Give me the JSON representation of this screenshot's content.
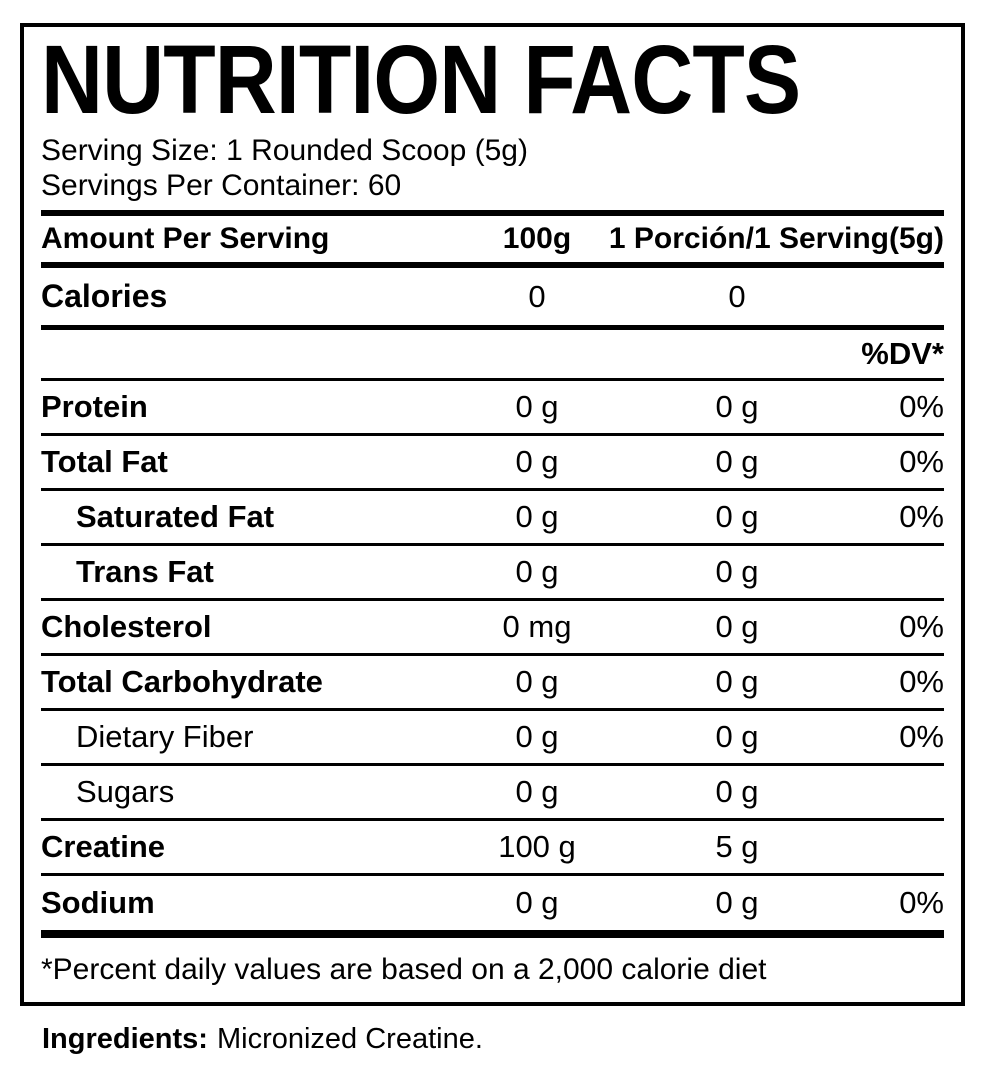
{
  "label": {
    "title": "NUTRITION FACTS",
    "serving_size": "Serving Size: 1 Rounded Scoop (5g)",
    "servings_per_container": "Servings Per Container: 60",
    "header": {
      "amount": "Amount Per Serving",
      "col_100g": "100g",
      "col_serving": "1 Porción/1 Serving(5g)"
    },
    "calories": {
      "name": "Calories",
      "per_100g": "0",
      "per_serving": "0"
    },
    "dv_header": "%DV*",
    "rows": [
      {
        "name": "Protein",
        "per_100g": "0 g",
        "per_serving": "0 g",
        "dv": "0%"
      },
      {
        "name": "Total Fat",
        "per_100g": "0 g",
        "per_serving": "0 g",
        "dv": "0%"
      },
      {
        "name": "Saturated Fat",
        "per_100g": "0 g",
        "per_serving": "0 g",
        "dv": "0%"
      },
      {
        "name": "Trans Fat",
        "per_100g": "0 g",
        "per_serving": "0 g",
        "dv": ""
      },
      {
        "name": "Cholesterol",
        "per_100g": "0 mg",
        "per_serving": "0 g",
        "dv": "0%"
      },
      {
        "name": "Total Carbohydrate",
        "per_100g": "0 g",
        "per_serving": "0 g",
        "dv": "0%"
      },
      {
        "name": "Dietary Fiber",
        "per_100g": "0 g",
        "per_serving": "0 g",
        "dv": "0%"
      },
      {
        "name": "Sugars",
        "per_100g": "0 g",
        "per_serving": "0 g",
        "dv": ""
      },
      {
        "name": "Creatine",
        "per_100g": "100 g",
        "per_serving": "5 g",
        "dv": ""
      },
      {
        "name": "Sodium",
        "per_100g": "0 g",
        "per_serving": "0 g",
        "dv": "0%"
      }
    ],
    "footnote": "*Percent daily values are based on a 2,000 calorie diet",
    "ingredients_label": "Ingredients:",
    "ingredients_value": "Micronized Creatine."
  },
  "colors": {
    "text": "#000000",
    "background": "#ffffff",
    "border": "#000000"
  }
}
